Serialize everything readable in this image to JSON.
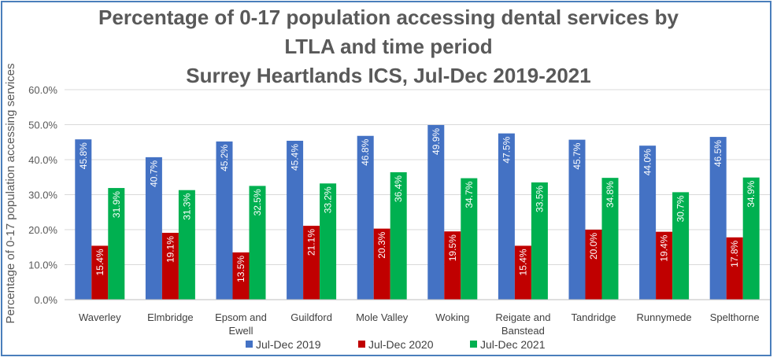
{
  "chart_data": {
    "type": "bar",
    "title_lines": [
      "Percentage of 0-17 population accessing dental services by",
      "LTLA and time period",
      "Surrey Heartlands ICS, Jul-Dec 2019-2021"
    ],
    "xlabel": "",
    "ylabel": "Percentage of 0-17 population accessing services",
    "ylim": [
      0,
      60
    ],
    "yticks": [
      "0.0%",
      "10.0%",
      "20.0%",
      "30.0%",
      "40.0%",
      "50.0%",
      "60.0%"
    ],
    "grid": true,
    "legend_position": "bottom",
    "categories": [
      [
        "Waverley"
      ],
      [
        "Elmbridge"
      ],
      [
        "Epsom and",
        "Ewell"
      ],
      [
        "Guildford"
      ],
      [
        "Mole Valley"
      ],
      [
        "Woking"
      ],
      [
        "Reigate and",
        "Banstead"
      ],
      [
        "Tandridge"
      ],
      [
        "Runnymede"
      ],
      [
        "Spelthorne"
      ]
    ],
    "series": [
      {
        "name": "Jul-Dec 2019",
        "color": "#4472c4",
        "values": [
          45.8,
          40.7,
          45.2,
          45.4,
          46.8,
          49.9,
          47.5,
          45.7,
          44.0,
          46.5
        ],
        "labels": [
          "45.8%",
          "40.7%",
          "45.2%",
          "45.4%",
          "46.8%",
          "49.9%",
          "47.5%",
          "45.7%",
          "44.0%",
          "46.5%"
        ]
      },
      {
        "name": "Jul-Dec 2020",
        "color": "#c00000",
        "values": [
          15.4,
          19.1,
          13.5,
          21.1,
          20.3,
          19.5,
          15.4,
          20.0,
          19.4,
          17.8
        ],
        "labels": [
          "15.4%",
          "19.1%",
          "13.5%",
          "21.1%",
          "20.3%",
          "19.5%",
          "15.4%",
          "20.0%",
          "19.4%",
          "17.8%"
        ]
      },
      {
        "name": "Jul-Dec 2021",
        "color": "#00b050",
        "values": [
          31.9,
          31.3,
          32.5,
          33.2,
          36.4,
          34.7,
          33.5,
          34.8,
          30.7,
          34.9
        ],
        "labels": [
          "31.9%",
          "31.3%",
          "32.5%",
          "33.2%",
          "36.4%",
          "34.7%",
          "33.5%",
          "34.8%",
          "30.7%",
          "34.9%"
        ]
      }
    ]
  }
}
